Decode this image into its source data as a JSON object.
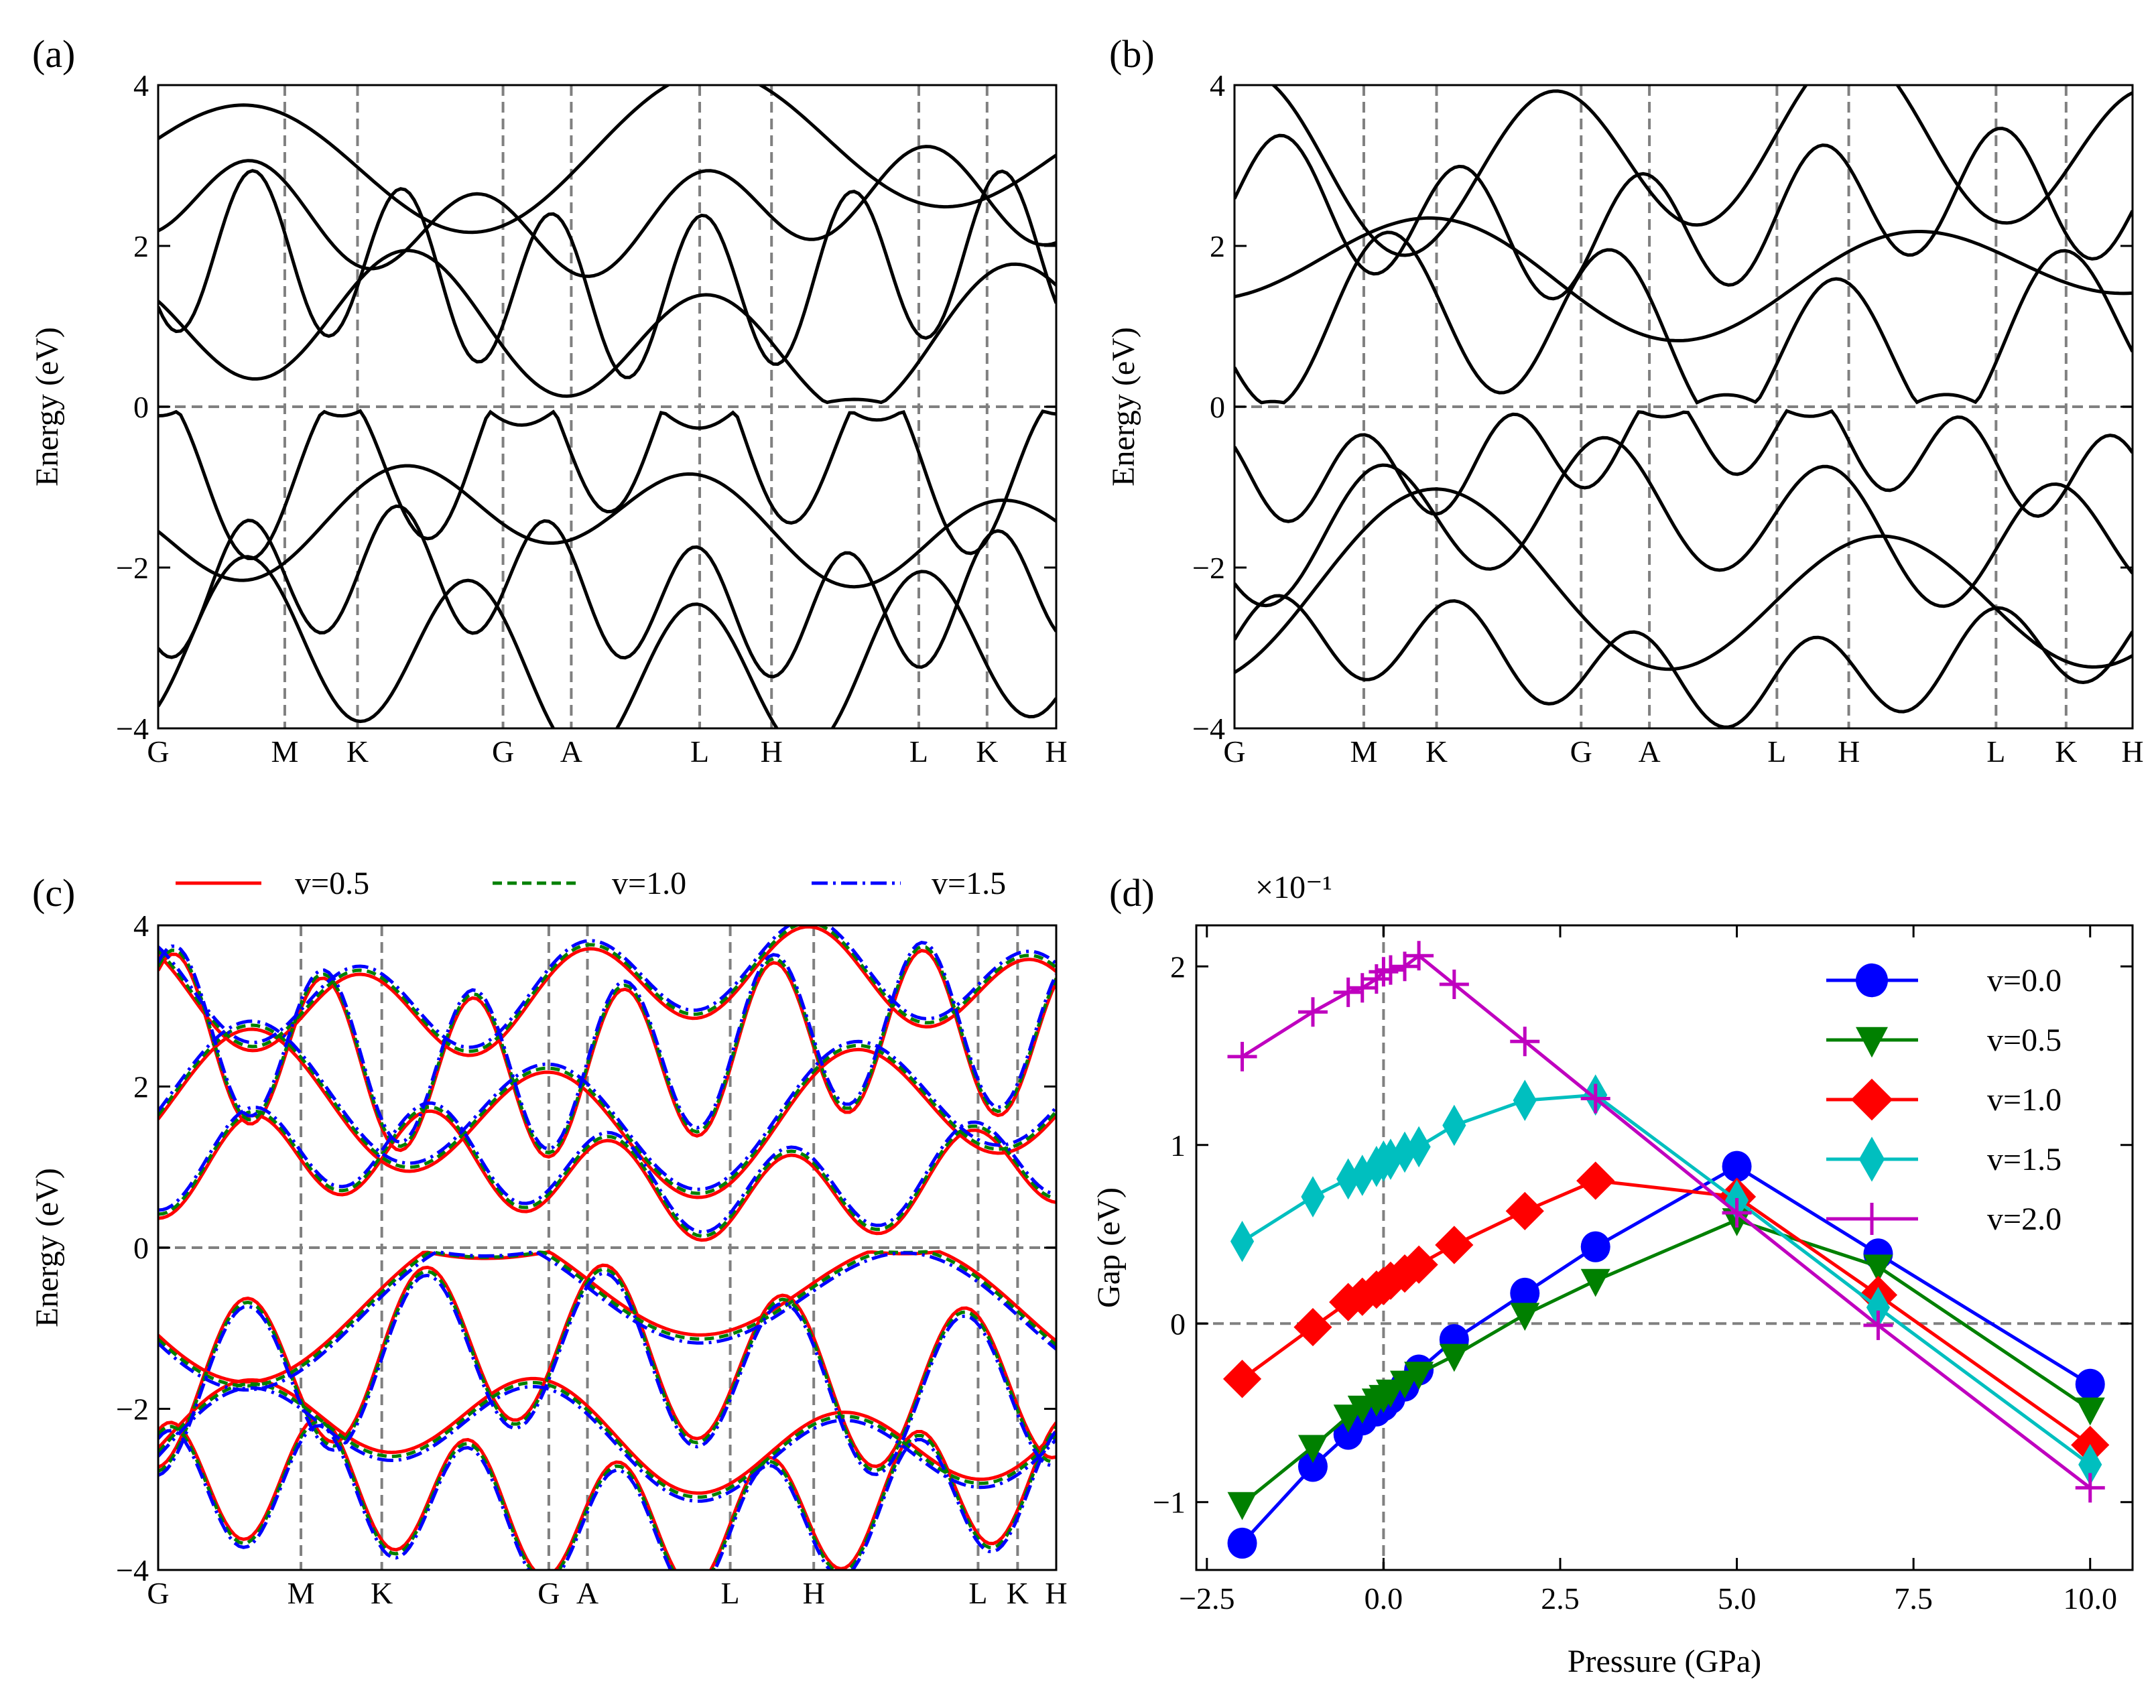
{
  "chart_data": [
    {
      "panel": "(a)",
      "type": "line",
      "title": "",
      "ylabel": "Energy (eV)",
      "ylim": [
        -4,
        4
      ],
      "yticks": [
        "−4",
        "−2",
        "0",
        "2",
        "4"
      ],
      "kpoints": [
        "G",
        "M",
        "K",
        "G",
        "A",
        "L",
        "H",
        "L",
        "K",
        "H"
      ],
      "reference_line": 0,
      "bands": "black band-structure curves"
    },
    {
      "panel": "(b)",
      "type": "line",
      "ylabel": "Energy (eV)",
      "ylim": [
        -4,
        4
      ],
      "yticks": [
        "−4",
        "−2",
        "0",
        "2",
        "4"
      ],
      "kpoints": [
        "G",
        "M",
        "K",
        "G",
        "A",
        "L",
        "H",
        "L",
        "K",
        "H"
      ],
      "reference_line": 0
    },
    {
      "panel": "(c)",
      "type": "line",
      "ylabel": "Energy (eV)",
      "ylim": [
        -4,
        4
      ],
      "yticks": [
        "−4",
        "−2",
        "0",
        "2",
        "4"
      ],
      "kpoints": [
        "G",
        "M",
        "K",
        "G",
        "A",
        "L",
        "H",
        "L",
        "K",
        "H"
      ],
      "legend": [
        {
          "name": "v=0.5",
          "color": "#ff0000",
          "style": "solid"
        },
        {
          "name": "v=1.0",
          "color": "#008000",
          "style": "dashed"
        },
        {
          "name": "v=1.5",
          "color": "#0000ff",
          "style": "dashdot"
        }
      ],
      "legend_placement": "top-outside"
    },
    {
      "panel": "(d)",
      "type": "line",
      "xlabel": "Pressure (GPa)",
      "ylabel": "Gap (eV)",
      "scale_label": "×10⁻¹",
      "xlim": [
        -2.65,
        10.6
      ],
      "ylim": [
        -1.38,
        2.23
      ],
      "xticks": [
        -2.5,
        0.0,
        2.5,
        5.0,
        7.5,
        10.0
      ],
      "xtick_labels": [
        "−2.5",
        "0.0",
        "2.5",
        "5.0",
        "7.5",
        "10.0"
      ],
      "yticks": [
        -1,
        0,
        1,
        2
      ],
      "ytick_labels": [
        "−1",
        "0",
        "1",
        "2"
      ],
      "legend_placement": "top-right",
      "x": [
        -2,
        -1,
        -0.5,
        -0.3,
        -0.1,
        0,
        0.1,
        0.3,
        0.5,
        1,
        2,
        3,
        5,
        7,
        10
      ],
      "series": [
        {
          "name": "v=0.0",
          "color": "#0000ff",
          "marker": "circle",
          "values": [
            -1.23,
            -0.8,
            -0.62,
            -0.54,
            -0.49,
            -0.46,
            -0.42,
            -0.35,
            -0.26,
            -0.09,
            0.17,
            0.43,
            0.88,
            0.39,
            -0.34
          ]
        },
        {
          "name": "v=0.5",
          "color": "#008000",
          "marker": "triangle-down",
          "values": [
            -1.01,
            -0.69,
            -0.52,
            -0.47,
            -0.43,
            -0.41,
            -0.38,
            -0.33,
            -0.28,
            -0.18,
            0.05,
            0.24,
            0.58,
            0.32,
            -0.48
          ]
        },
        {
          "name": "v=1.0",
          "color": "#ff0000",
          "marker": "diamond",
          "values": [
            -0.31,
            -0.02,
            0.12,
            0.15,
            0.19,
            0.21,
            0.24,
            0.28,
            0.33,
            0.44,
            0.63,
            0.8,
            0.71,
            0.16,
            -0.68
          ]
        },
        {
          "name": "v=1.5",
          "color": "#00bfbf",
          "marker": "thin-diamond",
          "values": [
            0.46,
            0.71,
            0.81,
            0.83,
            0.88,
            0.91,
            0.92,
            0.96,
            0.99,
            1.11,
            1.25,
            1.28,
            0.69,
            0.09,
            -0.79
          ]
        },
        {
          "name": "v=2.0",
          "color": "#bf00bf",
          "marker": "plus",
          "values": [
            1.495,
            1.745,
            1.855,
            1.88,
            1.93,
            1.97,
            1.98,
            2.0,
            2.06,
            1.9,
            1.58,
            1.26,
            0.62,
            -0.01,
            -0.92
          ]
        }
      ]
    }
  ],
  "labels": {
    "a": "(a)",
    "b": "(b)",
    "c": "(c)",
    "d": "(d)"
  }
}
